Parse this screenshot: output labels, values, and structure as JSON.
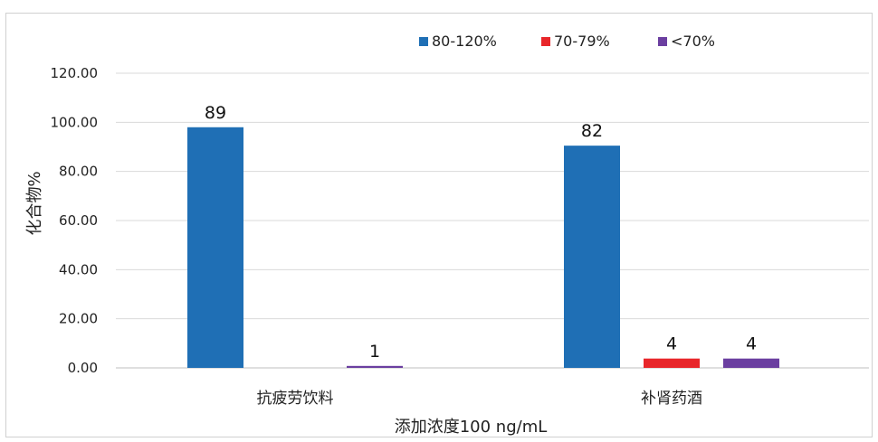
{
  "chart_data": {
    "type": "bar",
    "categories": [
      "抗疲劳饮料",
      "补肾药酒"
    ],
    "series": [
      {
        "name": "80-120%",
        "color": "#1f6fb5",
        "values": [
          98,
          90.5
        ],
        "labels": [
          "89",
          "82"
        ]
      },
      {
        "name": "70-79%",
        "color": "#e8262a",
        "values": [
          0,
          3.8
        ],
        "labels": [
          "",
          "4"
        ]
      },
      {
        "name": "<70%",
        "color": "#6b3fa0",
        "values": [
          0.8,
          3.8
        ],
        "labels": [
          "1",
          "4"
        ]
      }
    ],
    "yticks": [
      "0.00",
      "20.00",
      "40.00",
      "60.00",
      "80.00",
      "100.00",
      "120.00"
    ],
    "ylim": [
      0,
      120
    ],
    "xlabel": "添加浓度100 ng/mL",
    "ylabel": "化合物%",
    "grid": true,
    "legend_position": "top-right"
  }
}
